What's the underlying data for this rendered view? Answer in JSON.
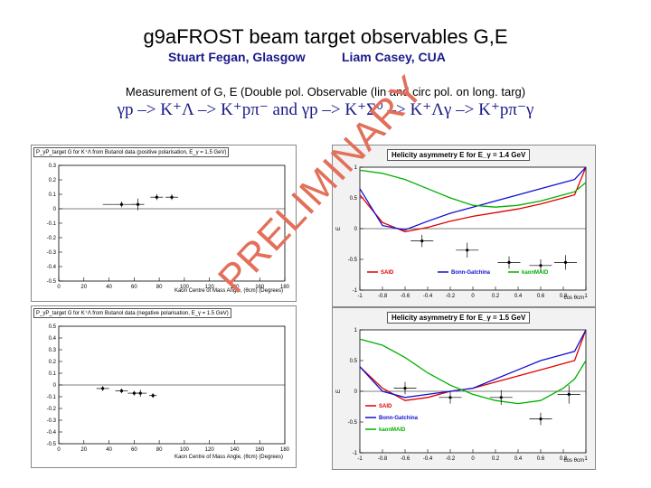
{
  "header": {
    "title": "g9aFROST beam target observables G,E",
    "author1": "Stuart Fegan, Glasgow",
    "author2": "Liam Casey, CUA",
    "subtitle": "Measurement of G, E (Double pol. Observable (lin and circ pol. on long. targ)",
    "reactions": "γp –> K⁺Λ –> K⁺pπ⁻  and γp –> K⁺Σ⁰ –> K⁺Λγ –> K⁺pπ⁻γ"
  },
  "watermark": "PRELIMINARY",
  "colors": {
    "said": "#e00000",
    "bonn": "#1010d0",
    "maid": "#00b000",
    "watermark": "#e2705a",
    "title": "#1a1a8a"
  },
  "chart_data": [
    {
      "type": "scatter",
      "title": "P_γP_target G for K⁺Λ from Butanol data (positive polarisation, E_γ = 1.5 GeV)",
      "xlabel": "Kaon Centre of Mass Angle, (θcm) (Degrees)",
      "ylabel": "",
      "xlim": [
        0,
        180
      ],
      "ylim": [
        -0.5,
        0.3
      ],
      "xticks": [
        "0",
        "20",
        "40",
        "60",
        "80",
        "100",
        "120",
        "140",
        "160",
        "180"
      ],
      "yticks": [
        "0.3",
        "0.2",
        "0.1",
        "0",
        "-0.1",
        "-0.2",
        "-0.3",
        "-0.4",
        "-0.5"
      ],
      "points": [
        {
          "x": 50,
          "y": 0.03,
          "xerr": 15,
          "yerr": 0.02
        },
        {
          "x": 63,
          "y": 0.03,
          "xerr": 5,
          "yerr": 0.04
        },
        {
          "x": 78,
          "y": 0.08,
          "xerr": 5,
          "yerr": 0.02
        },
        {
          "x": 90,
          "y": 0.08,
          "xerr": 5,
          "yerr": 0.02
        }
      ]
    },
    {
      "type": "scatter",
      "title": "P_γP_target G for K⁺Λ from Butanol data (negative polarisation, E_γ = 1.5 GeV)",
      "xlabel": "Kaon Centre of Mass Angle, (θcm) (Degrees)",
      "ylabel": "",
      "xlim": [
        0,
        180
      ],
      "ylim": [
        -0.5,
        0.5
      ],
      "xticks": [
        "0",
        "20",
        "40",
        "60",
        "80",
        "100",
        "120",
        "140",
        "160",
        "180"
      ],
      "yticks": [
        "0.5",
        "0.4",
        "0.3",
        "0.2",
        "0.1",
        "0",
        "-0.1",
        "-0.2",
        "-0.3",
        "-0.4",
        "-0.5"
      ],
      "points": [
        {
          "x": 35,
          "y": -0.03,
          "xerr": 5,
          "yerr": 0.02
        },
        {
          "x": 50,
          "y": -0.05,
          "xerr": 5,
          "yerr": 0.02
        },
        {
          "x": 60,
          "y": -0.07,
          "xerr": 5,
          "yerr": 0.02
        },
        {
          "x": 65,
          "y": -0.07,
          "xerr": 5,
          "yerr": 0.03
        },
        {
          "x": 75,
          "y": -0.09,
          "xerr": 3,
          "yerr": 0.02
        }
      ]
    },
    {
      "type": "line",
      "title": "Helicity asymmetry E for E_γ = 1.4 GeV",
      "xlabel": "cos θcm",
      "ylabel": "E",
      "xlim": [
        -1,
        1
      ],
      "ylim": [
        -1,
        1
      ],
      "xticks": [
        "-1",
        "-0.8",
        "-0.6",
        "-0.4",
        "-0.2",
        "0",
        "0.2",
        "0.4",
        "0.6",
        "0.8",
        "1"
      ],
      "yticks": [
        "1",
        "0.5",
        "0",
        "-0.5",
        "-1"
      ],
      "legend": [
        "SAID",
        "Bonn-Gatchina",
        "kaonMAID"
      ],
      "legend_position": "bottom",
      "series": [
        {
          "name": "SAID",
          "color": "#e00000",
          "x": [
            -1,
            -0.8,
            -0.6,
            -0.4,
            -0.2,
            0,
            0.2,
            0.4,
            0.6,
            0.8,
            0.9,
            1
          ],
          "y": [
            0.55,
            0.1,
            -0.05,
            0.02,
            0.12,
            0.2,
            0.26,
            0.32,
            0.4,
            0.5,
            0.55,
            1
          ]
        },
        {
          "name": "Bonn-Gatchina",
          "color": "#1010d0",
          "x": [
            -1,
            -0.8,
            -0.6,
            -0.4,
            -0.2,
            0,
            0.2,
            0.4,
            0.6,
            0.8,
            0.9,
            1
          ],
          "y": [
            0.65,
            0.05,
            -0.02,
            0.12,
            0.25,
            0.35,
            0.45,
            0.55,
            0.65,
            0.75,
            0.8,
            1
          ]
        },
        {
          "name": "kaonMAID",
          "color": "#00b000",
          "x": [
            -1,
            -0.8,
            -0.6,
            -0.4,
            -0.2,
            0,
            0.2,
            0.4,
            0.6,
            0.8,
            0.9,
            1
          ],
          "y": [
            0.95,
            0.9,
            0.8,
            0.65,
            0.5,
            0.38,
            0.35,
            0.38,
            0.45,
            0.55,
            0.6,
            0.75
          ]
        }
      ],
      "points": [
        {
          "x": -0.45,
          "y": -0.2,
          "xerr": 0.1,
          "yerr": 0.1
        },
        {
          "x": -0.05,
          "y": -0.35,
          "xerr": 0.1,
          "yerr": 0.12
        },
        {
          "x": 0.32,
          "y": -0.55,
          "xerr": 0.1,
          "yerr": 0.1
        },
        {
          "x": 0.6,
          "y": -0.6,
          "xerr": 0.1,
          "yerr": 0.1
        },
        {
          "x": 0.82,
          "y": -0.55,
          "xerr": 0.1,
          "yerr": 0.12
        }
      ]
    },
    {
      "type": "line",
      "title": "Helicity asymmetry E for E_γ = 1.5 GeV",
      "xlabel": "cos θcm",
      "ylabel": "E",
      "xlim": [
        -1,
        1
      ],
      "ylim": [
        -1,
        1
      ],
      "xticks": [
        "-1",
        "-0.8",
        "-0.6",
        "-0.4",
        "-0.2",
        "0",
        "0.2",
        "0.4",
        "0.6",
        "0.8",
        "1"
      ],
      "yticks": [
        "1",
        "0.5",
        "0",
        "-0.5",
        "-1"
      ],
      "legend": [
        "SAID",
        "Bonn-Gatchina",
        "kaonMAID"
      ],
      "legend_position": "bottom-left",
      "series": [
        {
          "name": "SAID",
          "color": "#e00000",
          "x": [
            -1,
            -0.8,
            -0.6,
            -0.4,
            -0.2,
            0,
            0.2,
            0.4,
            0.6,
            0.8,
            0.9,
            1
          ],
          "y": [
            0.4,
            0.05,
            -0.15,
            -0.1,
            0.0,
            0.05,
            0.15,
            0.25,
            0.35,
            0.45,
            0.5,
            1
          ]
        },
        {
          "name": "Bonn-Gatchina",
          "color": "#1010d0",
          "x": [
            -1,
            -0.8,
            -0.6,
            -0.4,
            -0.2,
            0,
            0.2,
            0.4,
            0.6,
            0.8,
            0.9,
            1
          ],
          "y": [
            0.4,
            0.0,
            -0.1,
            -0.05,
            0.0,
            0.05,
            0.2,
            0.35,
            0.5,
            0.6,
            0.65,
            1
          ]
        },
        {
          "name": "kaonMAID",
          "color": "#00b000",
          "x": [
            -1,
            -0.8,
            -0.6,
            -0.4,
            -0.2,
            0,
            0.2,
            0.4,
            0.6,
            0.8,
            0.9,
            1
          ],
          "y": [
            0.85,
            0.75,
            0.55,
            0.3,
            0.1,
            -0.05,
            -0.15,
            -0.2,
            -0.15,
            0.05,
            0.2,
            0.5
          ]
        }
      ],
      "points": [
        {
          "x": -0.6,
          "y": 0.05,
          "xerr": 0.1,
          "yerr": 0.1
        },
        {
          "x": -0.2,
          "y": -0.1,
          "xerr": 0.1,
          "yerr": 0.1
        },
        {
          "x": 0.25,
          "y": -0.1,
          "xerr": 0.1,
          "yerr": 0.12
        },
        {
          "x": 0.6,
          "y": -0.45,
          "xerr": 0.1,
          "yerr": 0.1
        },
        {
          "x": 0.85,
          "y": -0.05,
          "xerr": 0.1,
          "yerr": 0.15
        }
      ]
    }
  ]
}
